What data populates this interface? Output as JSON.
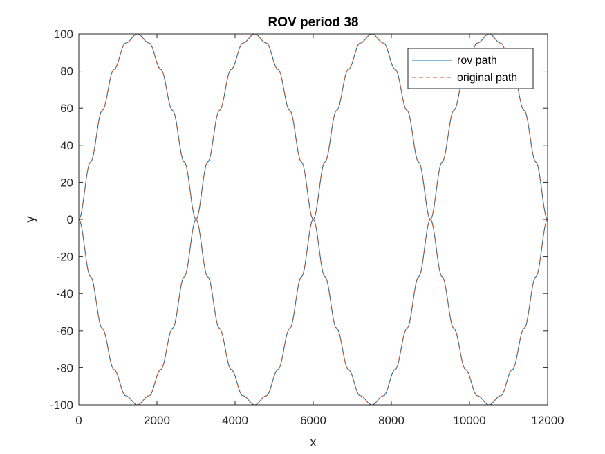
{
  "chart_data": {
    "type": "line",
    "title": "ROV period 38",
    "xlabel": "x",
    "ylabel": "y",
    "xlim": [
      0,
      12000
    ],
    "ylim": [
      -100,
      100
    ],
    "xticks": [
      0,
      2000,
      4000,
      6000,
      8000,
      10000,
      12000
    ],
    "yticks": [
      -100,
      -80,
      -60,
      -40,
      -20,
      0,
      20,
      40,
      60,
      80,
      100
    ],
    "xtick_labels": [
      "0",
      "2000",
      "4000",
      "6000",
      "8000",
      "10000",
      "12000"
    ],
    "ytick_labels": [
      "-100",
      "-80",
      "-60",
      "-40",
      "-20",
      "0",
      "20",
      "40",
      "60",
      "80",
      "100"
    ],
    "grid": false,
    "legend_position": "top-right",
    "x": [
      0,
      300,
      600,
      900,
      1200,
      1500,
      1800,
      2100,
      2400,
      2700,
      3000,
      3300,
      3600,
      3900,
      4200,
      4500,
      4800,
      5100,
      5400,
      5700,
      6000,
      6300,
      6600,
      6900,
      7200,
      7500,
      7800,
      8100,
      8400,
      8700,
      9000,
      9300,
      9600,
      9900,
      10200,
      10500,
      10800,
      11100,
      11400,
      11700,
      12000
    ],
    "series": [
      {
        "name": "rov path",
        "color": "#0072BD",
        "style": "solid",
        "curves": [
          [
            0,
            30.9,
            58.8,
            80.9,
            95.1,
            100,
            95.1,
            80.9,
            58.8,
            30.9,
            0,
            -30.9,
            -58.8,
            -80.9,
            -95.1,
            -100,
            -95.1,
            -80.9,
            -58.8,
            -30.9,
            0,
            30.9,
            58.8,
            80.9,
            95.1,
            100,
            95.1,
            80.9,
            58.8,
            30.9,
            0,
            -30.9,
            -58.8,
            -80.9,
            -95.1,
            -100,
            -95.1,
            -80.9,
            -58.8,
            -30.9,
            0
          ],
          [
            0,
            -30.9,
            -58.8,
            -80.9,
            -95.1,
            -100,
            -95.1,
            -80.9,
            -58.8,
            -30.9,
            0,
            30.9,
            58.8,
            80.9,
            95.1,
            100,
            95.1,
            80.9,
            58.8,
            30.9,
            0,
            -30.9,
            -58.8,
            -80.9,
            -95.1,
            -100,
            -95.1,
            -80.9,
            -58.8,
            -30.9,
            0,
            30.9,
            58.8,
            80.9,
            95.1,
            100,
            95.1,
            80.9,
            58.8,
            30.9,
            0
          ]
        ]
      },
      {
        "name": "original path",
        "color": "#D95319",
        "style": "dashed",
        "curves": [
          [
            0,
            30.9,
            58.8,
            80.9,
            95.1,
            100,
            95.1,
            80.9,
            58.8,
            30.9,
            0,
            -30.9,
            -58.8,
            -80.9,
            -95.1,
            -100,
            -95.1,
            -80.9,
            -58.8,
            -30.9,
            0,
            30.9,
            58.8,
            80.9,
            95.1,
            100,
            95.1,
            80.9,
            58.8,
            30.9,
            0,
            -30.9,
            -58.8,
            -80.9,
            -95.1,
            -100,
            -95.1,
            -80.9,
            -58.8,
            -30.9,
            0
          ],
          [
            0,
            -30.9,
            -58.8,
            -80.9,
            -95.1,
            -100,
            -95.1,
            -80.9,
            -58.8,
            -30.9,
            0,
            30.9,
            58.8,
            80.9,
            95.1,
            100,
            95.1,
            80.9,
            58.8,
            30.9,
            0,
            -30.9,
            -58.8,
            -80.9,
            -95.1,
            -100,
            -95.1,
            -80.9,
            -58.8,
            -30.9,
            0,
            30.9,
            58.8,
            80.9,
            95.1,
            100,
            95.1,
            80.9,
            58.8,
            30.9,
            0
          ]
        ]
      }
    ]
  }
}
